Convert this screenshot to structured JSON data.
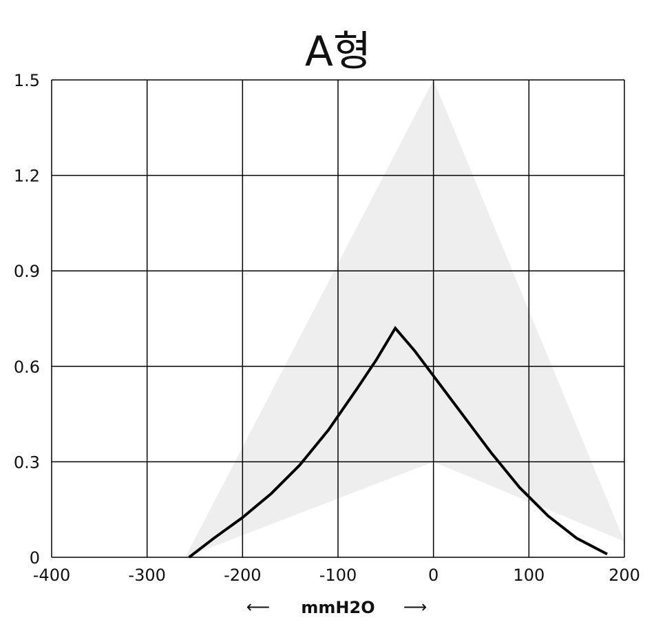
{
  "chart_data": {
    "type": "line",
    "title": "A형",
    "xlabel": "mmH2O",
    "ylabel": "",
    "xlim": [
      -400,
      200
    ],
    "ylim": [
      0,
      1.5
    ],
    "x_ticks": [
      "-400",
      "-300",
      "-200",
      "-100",
      "0",
      "100",
      "200"
    ],
    "y_ticks": [
      "0",
      "0.3",
      "0.6",
      "0.9",
      "1.2",
      "1.5"
    ],
    "grid": true,
    "legend": "none",
    "series": [
      {
        "x": [
          -256,
          -230,
          -200,
          -170,
          -140,
          -110,
          -80,
          -60,
          -40,
          -20,
          0,
          30,
          60,
          90,
          120,
          150,
          182
        ],
        "y": [
          0,
          0.06,
          0.125,
          0.2,
          0.29,
          0.4,
          0.53,
          0.62,
          0.72,
          0.65,
          0.57,
          0.45,
          0.33,
          0.22,
          0.13,
          0.06,
          0.01
        ],
        "color": "#000000"
      }
    ],
    "shaded_region": {
      "outer": {
        "x": [
          -260,
          0,
          200
        ],
        "y": [
          0,
          1.5,
          0.05
        ]
      },
      "inner": {
        "x": [
          -260,
          0,
          200
        ],
        "y": [
          0,
          0.3,
          0.05
        ]
      },
      "color": "#eeeeee"
    },
    "arrows": {
      "left": "⟵",
      "right": "⟶"
    }
  }
}
